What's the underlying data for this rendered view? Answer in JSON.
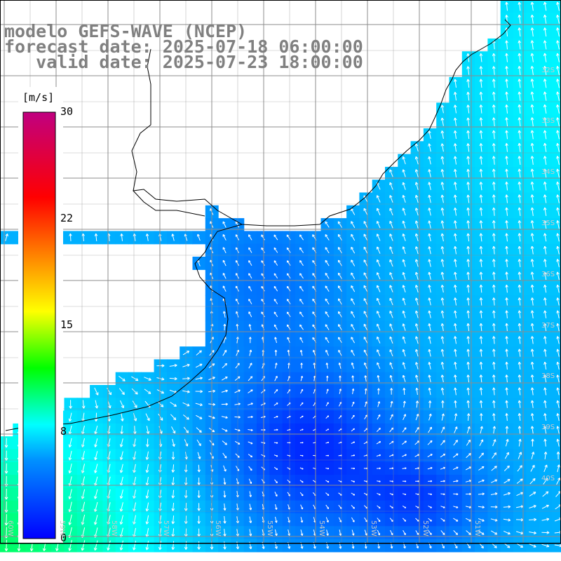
{
  "title": {
    "line1": "modelo GEFS-WAVE (NCEP)",
    "line2": "forecast date: 2025-07-18 06:00:00",
    "line3": "   valid date: 2025-07-23 18:00:00"
  },
  "colorbar": {
    "unit": "[m/s]",
    "ticks": [
      {
        "label": "30",
        "value": 30
      },
      {
        "label": "22",
        "value": 22
      },
      {
        "label": "15",
        "value": 15
      },
      {
        "label": "8",
        "value": 8
      },
      {
        "label": "0",
        "value": 0
      }
    ],
    "stops": [
      "#0000ff",
      "#0090ff",
      "#00ffff",
      "#00ff00",
      "#ffff00",
      "#ff8000",
      "#ff0000",
      "#c00080"
    ]
  },
  "grid": {
    "lat_labels": [
      "32S",
      "33S",
      "34S",
      "35S",
      "36S",
      "37S",
      "38S",
      "39S",
      "40S"
    ],
    "lon_labels": [
      "60W",
      "59W",
      "58W",
      "57W",
      "56W",
      "55W",
      "54W",
      "53W",
      "52W",
      "51W"
    ]
  },
  "colors": {
    "land": "#ffffff",
    "coast": "#000000",
    "gridline": "#8c8c8c",
    "arrow": "#ffffff"
  }
}
